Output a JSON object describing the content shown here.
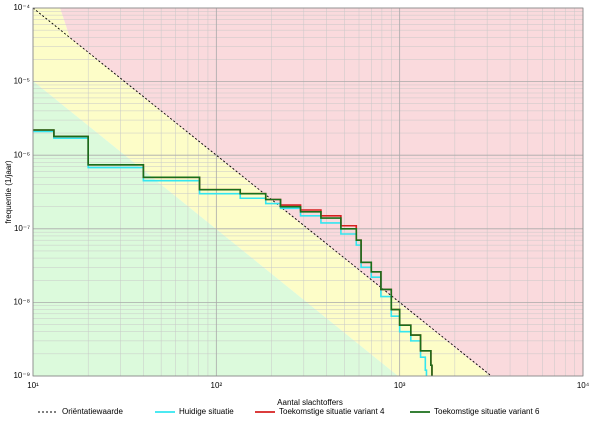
{
  "chart_data": {
    "type": "line",
    "xlabel": "Aantal slachtoffers",
    "ylabel": "frequentie (1/jaar)",
    "log_x": true,
    "log_y": true,
    "grid": true,
    "xlim": [
      10,
      10000
    ],
    "ylim": [
      1e-09,
      0.0001
    ],
    "xticks": [
      {
        "value": 10,
        "label": "10¹"
      },
      {
        "value": 100,
        "label": "10²"
      },
      {
        "value": 1000,
        "label": "10³"
      },
      {
        "value": 10000,
        "label": "10⁴"
      }
    ],
    "yticks": [
      {
        "value": 1e-09,
        "label": "10⁻⁹"
      },
      {
        "value": 1e-08,
        "label": "10⁻⁸"
      },
      {
        "value": 1e-07,
        "label": "10⁻⁷"
      },
      {
        "value": 1e-06,
        "label": "10⁻⁶"
      },
      {
        "value": 1e-05,
        "label": "10⁻⁵"
      },
      {
        "value": 0.0001,
        "label": "10⁻⁴"
      }
    ],
    "series": [
      {
        "name": "Oriëntatiewaarde",
        "color": "#000000",
        "dashed": true,
        "step": false,
        "x": [
          10,
          3162.28
        ],
        "values": [
          0.0001,
          1e-09
        ]
      },
      {
        "name": "Huidige situatie",
        "color": "#33e6f0",
        "dashed": false,
        "step": true,
        "x": [
          10,
          13,
          13,
          20,
          20,
          40,
          81,
          135,
          186,
          224,
          288,
          372,
          478,
          580,
          616,
          700,
          790,
          900,
          1000,
          1150,
          1300,
          1380,
          1400
        ],
        "values": [
          2.1e-06,
          2e-06,
          1.7e-06,
          1.7e-06,
          6.8e-07,
          4.5e-07,
          3e-07,
          2.6e-07,
          2.2e-07,
          1.9e-07,
          1.5e-07,
          1.2e-07,
          8.5e-08,
          6e-08,
          3e-08,
          2.2e-08,
          1.2e-08,
          6.5e-09,
          4e-09,
          3e-09,
          1.8e-09,
          1.2e-09,
          1e-09
        ]
      },
      {
        "name": "Toekomstige situatie variant 4",
        "color": "#d62020",
        "dashed": false,
        "step": true,
        "x": [
          10,
          13,
          13,
          20,
          20,
          40,
          81,
          135,
          186,
          224,
          288,
          372,
          478,
          580,
          616,
          700,
          790,
          900,
          1000,
          1150,
          1300,
          1480,
          1500
        ],
        "values": [
          2.2e-06,
          2.1e-06,
          1.8e-06,
          1.8e-06,
          7.4e-07,
          5e-07,
          3.4e-07,
          3e-07,
          2.5e-07,
          2.1e-07,
          1.8e-07,
          1.5e-07,
          1.1e-07,
          7e-08,
          3.5e-08,
          2.6e-08,
          1.5e-08,
          8e-09,
          4.9e-09,
          3.6e-09,
          2.2e-09,
          1.4e-09,
          1e-09
        ]
      },
      {
        "name": "Toekomstige situatie variant 6",
        "color": "#1a6e1a",
        "dashed": false,
        "step": true,
        "x": [
          10,
          13,
          13,
          20,
          20,
          40,
          81,
          135,
          186,
          224,
          288,
          372,
          478,
          580,
          616,
          700,
          790,
          900,
          1000,
          1150,
          1300,
          1480,
          1500
        ],
        "values": [
          2.2e-06,
          2.1e-06,
          1.8e-06,
          1.8e-06,
          7.4e-07,
          5e-07,
          3.4e-07,
          3e-07,
          2.5e-07,
          2e-07,
          1.7e-07,
          1.4e-07,
          1e-07,
          7e-08,
          3.5e-08,
          2.6e-08,
          1.5e-08,
          8e-09,
          4.9e-09,
          3.6e-09,
          2.2e-09,
          1.4e-09,
          1e-09
        ]
      }
    ]
  }
}
